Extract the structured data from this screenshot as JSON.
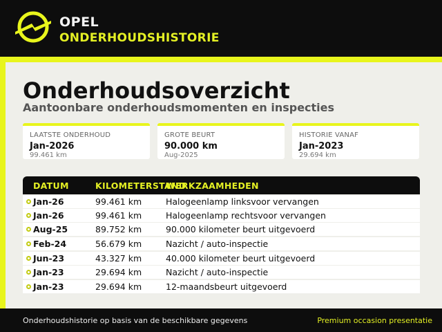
{
  "header": {
    "brand": "OPEL",
    "subtitle": "ONDERHOUDSHISTORIE",
    "logo_icon": "opel-blitz-logo-icon"
  },
  "colors": {
    "accent": "#e8f51c",
    "dark": "#0d0d0d",
    "panel": "#efefea"
  },
  "main": {
    "title": "Onderhoudsoverzicht",
    "subtitle": "Aantoonbare onderhoudsmomenten en inspecties"
  },
  "cards": [
    {
      "label": "LAATSTE ONDERHOUD",
      "value": "Jan-2026",
      "sub": "99.461 km"
    },
    {
      "label": "GROTE BEURT",
      "value": "90.000 km",
      "sub": "Aug-2025"
    },
    {
      "label": "HISTORIE VANAF",
      "value": "Jan-2023",
      "sub": "29.694 km"
    }
  ],
  "table": {
    "headers": {
      "date": "DATUM",
      "km": "KILOMETERSTAND",
      "work": "WERKZAAMHEDEN"
    },
    "rows": [
      {
        "date": "Jan-26",
        "km": "99.461 km",
        "work": "Halogeenlamp linksvoor vervangen"
      },
      {
        "date": "Jan-26",
        "km": "99.461 km",
        "work": "Halogeenlamp rechtsvoor vervangen"
      },
      {
        "date": "Aug-25",
        "km": "89.752 km",
        "work": "90.000 kilometer beurt uitgevoerd"
      },
      {
        "date": "Feb-24",
        "km": "56.679 km",
        "work": "Nazicht / auto-inspectie"
      },
      {
        "date": "Jun-23",
        "km": "43.327 km",
        "work": "40.000 kilometer beurt uitgevoerd"
      },
      {
        "date": "Jan-23",
        "km": "29.694 km",
        "work": "Nazicht / auto-inspectie"
      },
      {
        "date": "Jan-23",
        "km": "29.694 km",
        "work": "12-maandsbeurt uitgevoerd"
      }
    ]
  },
  "footer": {
    "left": "Onderhoudshistorie op basis van de beschikbare gegevens",
    "right": "Premium occasion presentatie"
  }
}
